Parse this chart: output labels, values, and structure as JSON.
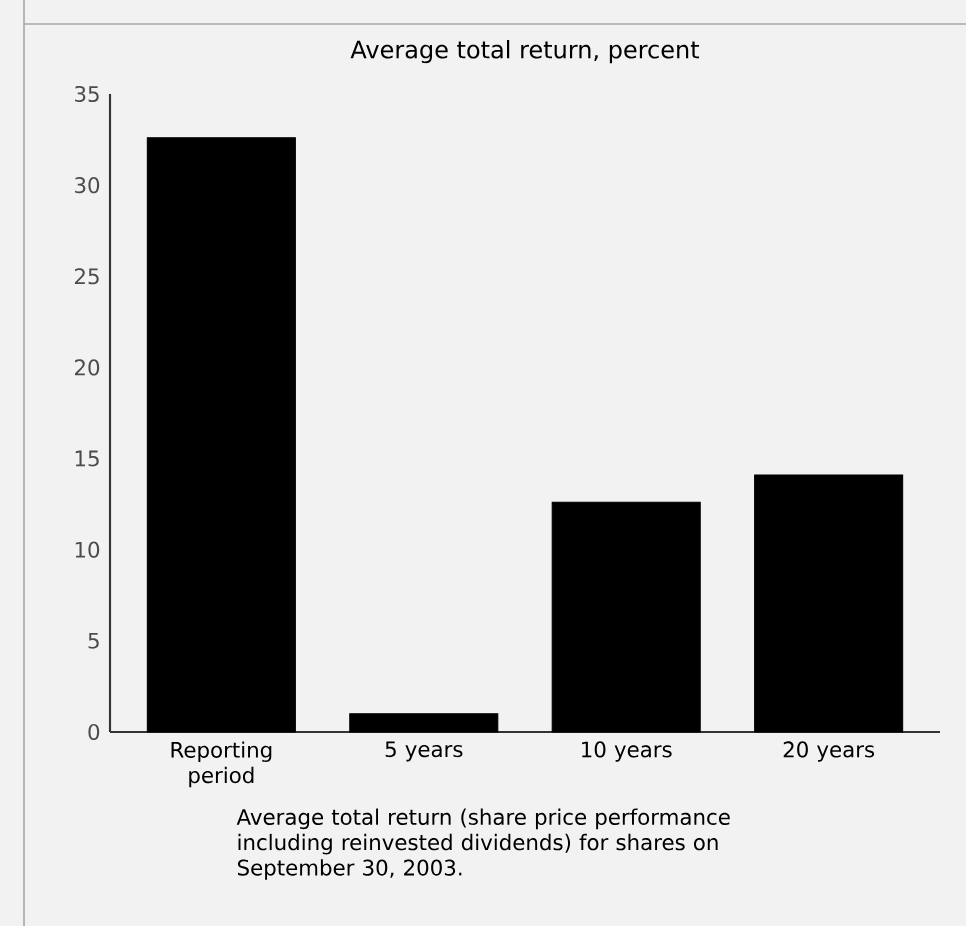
{
  "chart_data": {
    "type": "bar",
    "title": "Average total return, percent",
    "categories": [
      "Reporting period",
      "5 years",
      "10 years",
      "20 years"
    ],
    "values": [
      32.6,
      1.0,
      12.6,
      14.1
    ],
    "color": "#000000",
    "ylim": [
      0,
      35
    ],
    "yticks": [
      0,
      5,
      10,
      15,
      20,
      25,
      30,
      35
    ],
    "grid": false,
    "annotations": [
      "Average total return (share price performance including reinvested dividends) for shares on September 30, 2003."
    ]
  }
}
